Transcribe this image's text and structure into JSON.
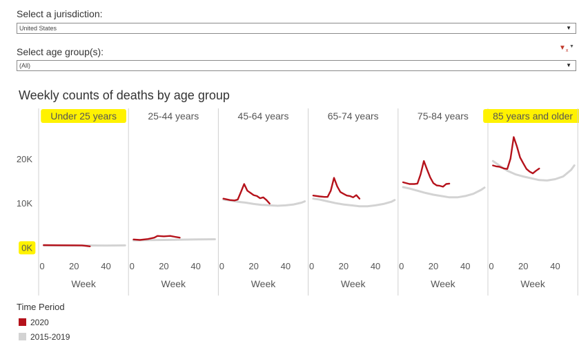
{
  "filters": {
    "jurisdiction": {
      "label": "Select a jurisdiction:",
      "value": "United States"
    },
    "age_group": {
      "label": "Select age group(s):",
      "value": "(All)"
    }
  },
  "icons": {
    "filter_clear": "filter-clear-icon",
    "dropdown": "chevron-down-icon"
  },
  "colors": {
    "current": "#b5121b",
    "historical": "#d3d3d3",
    "highlight": "#fff200"
  },
  "chart_data": {
    "type": "line",
    "title": "Weekly counts of deaths by age group",
    "xlabel": "Week",
    "ylabel": "",
    "xlim": [
      0,
      52
    ],
    "ylim": [
      -1500,
      27000
    ],
    "y_ticks": [
      0,
      10000,
      20000
    ],
    "y_tick_labels": [
      "0K",
      "10K",
      "20K"
    ],
    "x_ticks": [
      0,
      20,
      40
    ],
    "x_tick_labels": [
      "0",
      "20",
      "40"
    ],
    "highlighted_labels": [
      "Under 25 years",
      "85 years and older",
      "0K"
    ],
    "legend": {
      "title": "Time Period",
      "entries": [
        {
          "label": "2020",
          "color": "#b5121b"
        },
        {
          "label": "2015-2019",
          "color": "#d3d3d3"
        }
      ]
    },
    "panels": [
      {
        "name": "Under 25 years",
        "series": [
          {
            "name": "2015-2019",
            "x": [
              1,
              10,
              20,
              30,
              40,
              52
            ],
            "y": [
              450,
              430,
              420,
              440,
              430,
              460
            ]
          },
          {
            "name": "2020",
            "x": [
              1,
              10,
              20,
              25,
              30
            ],
            "y": [
              520,
              500,
              480,
              460,
              250
            ]
          }
        ]
      },
      {
        "name": "25-44 years",
        "series": [
          {
            "name": "2015-2019",
            "x": [
              1,
              10,
              20,
              30,
              40,
              52
            ],
            "y": [
              1600,
              1650,
              1700,
              1750,
              1800,
              1850
            ]
          },
          {
            "name": "2020",
            "x": [
              1,
              5,
              10,
              14,
              16,
              20,
              24,
              27,
              30
            ],
            "y": [
              1800,
              1700,
              1900,
              2200,
              2600,
              2500,
              2600,
              2400,
              2200
            ]
          }
        ]
      },
      {
        "name": "45-64 years",
        "series": [
          {
            "name": "2015-2019",
            "x": [
              1,
              5,
              10,
              15,
              20,
              25,
              30,
              35,
              40,
              45,
              50,
              52
            ],
            "y": [
              10800,
              10600,
              10300,
              10100,
              9800,
              9600,
              9500,
              9400,
              9500,
              9700,
              10100,
              10400
            ]
          },
          {
            "name": "2020",
            "x": [
              1,
              5,
              8,
              10,
              12,
              14,
              16,
              18,
              20,
              22,
              24,
              26,
              28,
              30
            ],
            "y": [
              11000,
              10700,
              10600,
              10800,
              12500,
              14300,
              12800,
              12300,
              11800,
              11600,
              11100,
              11300,
              10700,
              9900
            ]
          }
        ]
      },
      {
        "name": "65-74 years",
        "series": [
          {
            "name": "2015-2019",
            "x": [
              1,
              5,
              10,
              15,
              20,
              25,
              30,
              35,
              40,
              45,
              50,
              52
            ],
            "y": [
              11000,
              10800,
              10400,
              10000,
              9700,
              9500,
              9300,
              9300,
              9500,
              9800,
              10300,
              10700
            ]
          },
          {
            "name": "2020",
            "x": [
              1,
              5,
              8,
              10,
              12,
              14,
              16,
              18,
              20,
              22,
              24,
              26,
              28,
              30
            ],
            "y": [
              11700,
              11500,
              11400,
              11400,
              12800,
              15700,
              13800,
              12500,
              12100,
              11700,
              11600,
              11300,
              11800,
              11000
            ]
          }
        ]
      },
      {
        "name": "75-84 years",
        "series": [
          {
            "name": "2015-2019",
            "x": [
              1,
              5,
              10,
              15,
              20,
              25,
              30,
              35,
              40,
              45,
              50,
              52
            ],
            "y": [
              13600,
              13300,
              12800,
              12300,
              11900,
              11600,
              11300,
              11300,
              11600,
              12100,
              13000,
              13500
            ]
          },
          {
            "name": "2020",
            "x": [
              1,
              5,
              8,
              10,
              12,
              14,
              16,
              18,
              20,
              22,
              24,
              26,
              28,
              30
            ],
            "y": [
              14700,
              14300,
              14300,
              14400,
              16500,
              19500,
              17600,
              15800,
              14500,
              14000,
              13900,
              13700,
              14300,
              14400
            ]
          }
        ]
      },
      {
        "name": "85 years and older",
        "series": [
          {
            "name": "2015-2019",
            "x": [
              1,
              5,
              10,
              15,
              20,
              25,
              30,
              35,
              40,
              45,
              50,
              52
            ],
            "y": [
              19500,
              18500,
              17300,
              16500,
              16000,
              15600,
              15200,
              15100,
              15400,
              16000,
              17500,
              18500
            ]
          },
          {
            "name": "2020",
            "x": [
              1,
              3,
              5,
              8,
              10,
              12,
              14,
              16,
              18,
              20,
              22,
              24,
              26,
              28,
              30
            ],
            "y": [
              18500,
              18300,
              18200,
              17800,
              17700,
              20000,
              24900,
              22800,
              20300,
              19000,
              17700,
              17100,
              16700,
              17300,
              17800
            ]
          }
        ]
      }
    ]
  }
}
